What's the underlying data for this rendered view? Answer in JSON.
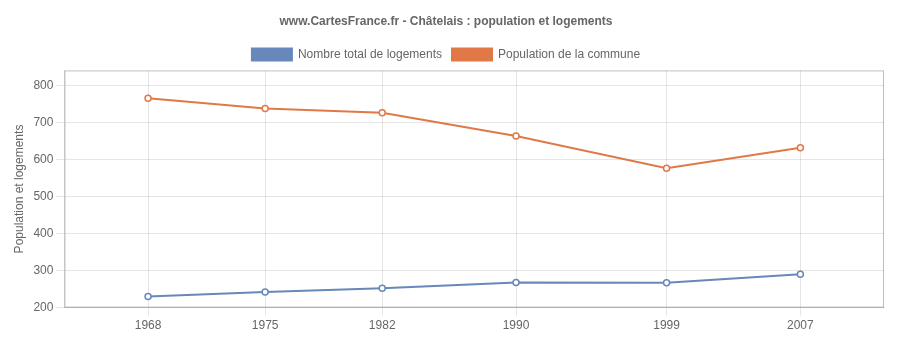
{
  "chart_data": {
    "type": "line",
    "title": "www.CartesFrance.fr - Châtelais : population et logements",
    "ylabel": "Population et logements",
    "x": [
      1968,
      1975,
      1982,
      1990,
      1999,
      2007
    ],
    "series": [
      {
        "name": "Nombre total de logements",
        "color": "#6688bb",
        "values": [
          230,
          242,
          252,
          268,
          267,
          290
        ]
      },
      {
        "name": "Population de la commune",
        "color": "#e07848",
        "values": [
          765,
          737,
          726,
          663,
          576,
          631
        ]
      }
    ],
    "xlim": [
      1963,
      2012
    ],
    "xticks": [
      1968,
      1975,
      1982,
      1990,
      1999,
      2007
    ],
    "ylim": [
      200,
      840
    ],
    "yticks": [
      200,
      300,
      400,
      500,
      600,
      700,
      800
    ],
    "grid": true,
    "legend": "top",
    "marker": "circle"
  }
}
